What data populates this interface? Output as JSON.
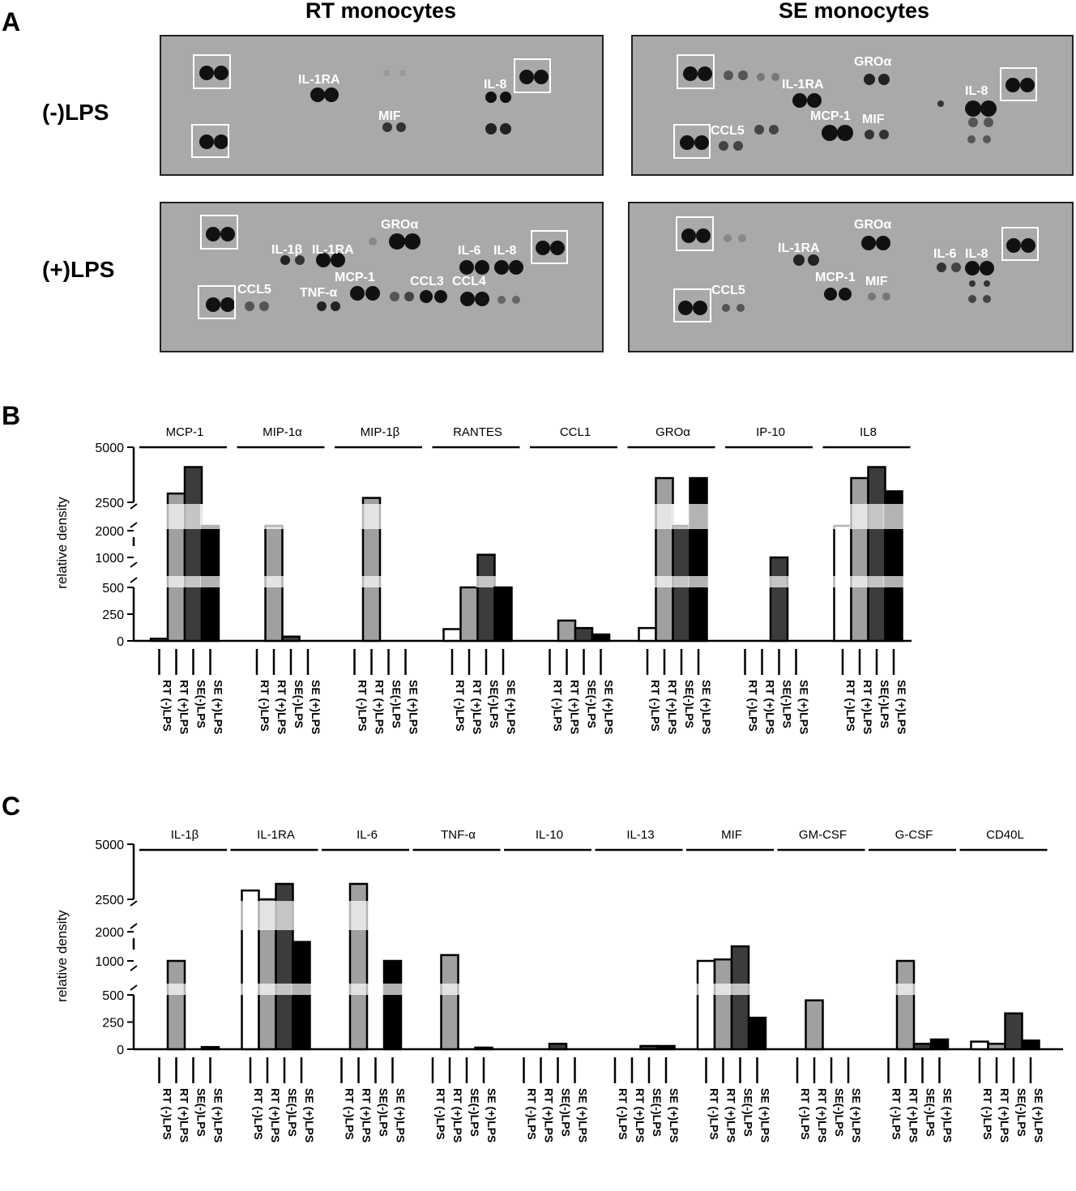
{
  "panels": {
    "a": "A",
    "b": "B",
    "c": "C"
  },
  "blots": {
    "column_titles": [
      "RT monocytes",
      "SE monocytes"
    ],
    "row_titles": [
      "(-)LPS",
      "(+)LPS"
    ],
    "labels": {
      "rt_neg": [
        "IL-1RA",
        "IL-8",
        "MIF"
      ],
      "se_neg": [
        "GROα",
        "IL-1RA",
        "IL-8",
        "MCP-1",
        "MIF",
        "CCL5"
      ],
      "rt_pos": [
        "GROα",
        "IL-1β",
        "IL-1RA",
        "IL-6",
        "IL-8",
        "CCL5",
        "TNF-α",
        "MCP-1",
        "CCL3",
        "CCL4"
      ],
      "se_pos": [
        "GROα",
        "IL-1RA",
        "IL-6",
        "IL-8",
        "CCL5",
        "MCP-1",
        "MIF"
      ]
    }
  },
  "colors": {
    "rt_neg": "#ffffff",
    "rt_pos": "#a0a0a0",
    "se_neg": "#3c3c3c",
    "se_pos": "#000000",
    "blot_bg": "#a9a9a9",
    "spot": "#111111"
  },
  "chart_data": [
    {
      "type": "bar",
      "panel": "B",
      "title": "",
      "ylabel": "relative density",
      "y_scale": "broken: 0-500 | 500-2000 | 2500-5000",
      "yticks": [
        "0",
        "250",
        "500",
        "1000",
        "2000",
        "2500",
        "5000"
      ],
      "groups": [
        "MCP-1",
        "MIP-1α",
        "MIP-1β",
        "RANTES",
        "CCL1",
        "GROα",
        "IP-10",
        "IL8"
      ],
      "conditions": [
        "RT (-)LPS",
        "RT (+)LPS",
        "SE(-)LPS",
        "SE (+)LPS"
      ],
      "series": [
        {
          "name": "RT (-)LPS",
          "values": [
            20,
            0,
            0,
            110,
            0,
            120,
            0,
            2100
          ]
        },
        {
          "name": "RT (+)LPS",
          "values": [
            2900,
            2200,
            2700,
            500,
            190,
            3600,
            0,
            3600
          ]
        },
        {
          "name": "SE(-)LPS",
          "values": [
            4100,
            40,
            0,
            1100,
            120,
            2100,
            850,
            4100
          ]
        },
        {
          "name": "SE (+)LPS",
          "values": [
            2100,
            0,
            0,
            500,
            60,
            3600,
            0,
            3000
          ]
        }
      ]
    },
    {
      "type": "bar",
      "panel": "C",
      "title": "",
      "ylabel": "relative density",
      "y_scale": "broken: 0-500 | 500-2000 | 2500-5000",
      "yticks": [
        "0",
        "250",
        "500",
        "1000",
        "2000",
        "2500",
        "5000"
      ],
      "groups": [
        "IL-1β",
        "IL-1RA",
        "IL-6",
        "TNF-α",
        "IL-10",
        "IL-13",
        "MIF",
        "GM-CSF",
        "G-CSF",
        "CD40L"
      ],
      "conditions": [
        "RT (-)LPS",
        "RT (+)LPS",
        "SE(-)LPS",
        "SE (+)LPS"
      ],
      "series": [
        {
          "name": "RT (-)LPS",
          "values": [
            0,
            2900,
            0,
            0,
            0,
            0,
            900,
            0,
            0,
            70
          ]
        },
        {
          "name": "RT (+)LPS",
          "values": [
            850,
            2300,
            3200,
            1200,
            0,
            0,
            1050,
            450,
            750,
            50
          ]
        },
        {
          "name": "SE(-)LPS",
          "values": [
            0,
            3200,
            0,
            0,
            50,
            30,
            1500,
            0,
            50,
            330
          ]
        },
        {
          "name": "SE (+)LPS",
          "values": [
            20,
            1650,
            950,
            15,
            0,
            30,
            290,
            0,
            90,
            80
          ]
        }
      ]
    }
  ]
}
